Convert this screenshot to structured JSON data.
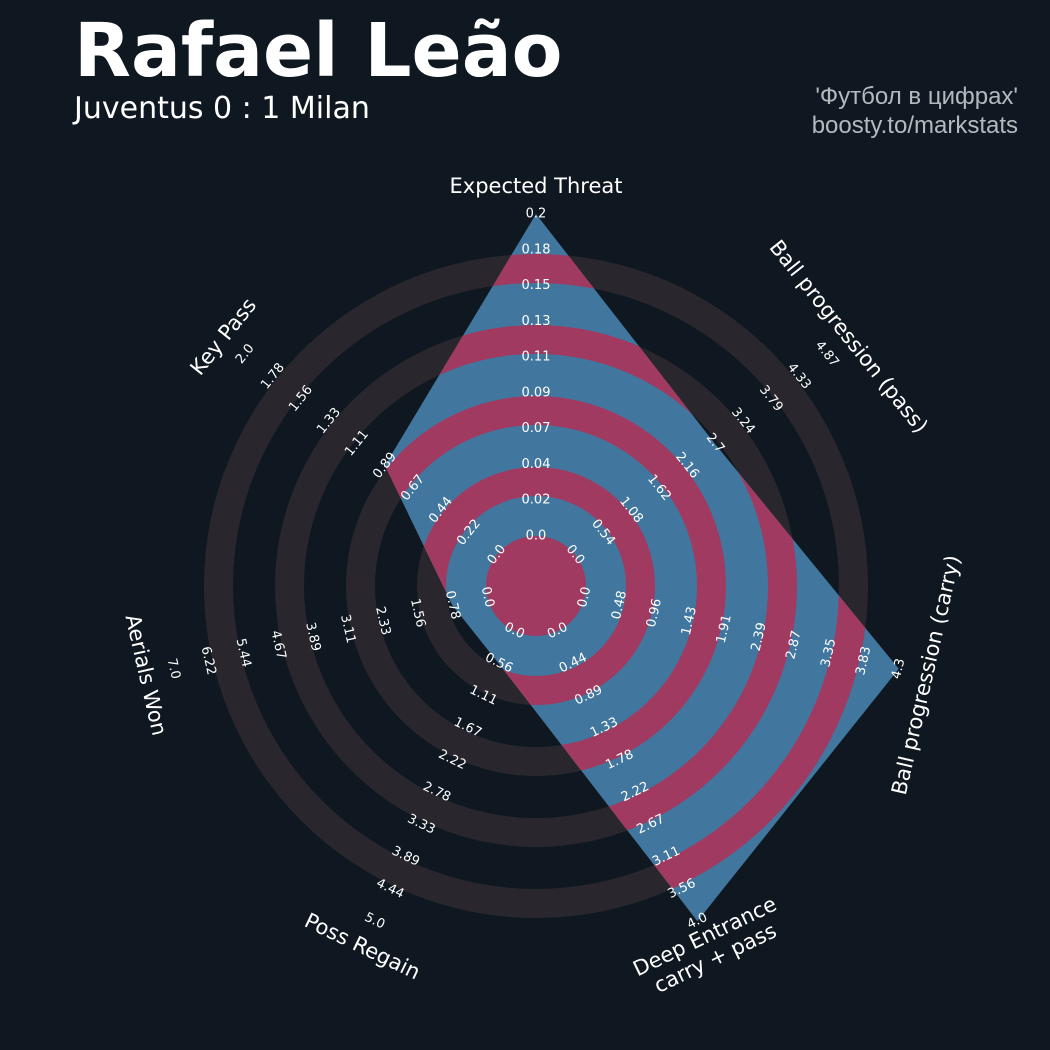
{
  "header": {
    "player_name": "Rafael Leão",
    "match": "Juventus 0 : 1 Milan",
    "credit_line1": "'Футбол в цифрах'",
    "credit_line2": "boosty.to/markstats"
  },
  "colors": {
    "background": "#0f1821",
    "ring_band": "#2a262e",
    "polygon_fill": "#41779f",
    "polygon_ring": "#a03a60",
    "text": "#ffffff",
    "credit_text": "#b4b9be"
  },
  "chart_data": {
    "type": "radar",
    "title": "Rafael Leão",
    "subtitle": "Juventus 0 : 1 Milan",
    "grid": true,
    "axes": [
      {
        "label": "Expected Threat",
        "min": 0.0,
        "max": 0.2,
        "value": 0.2,
        "ticks": [
          "0.0",
          "0.02",
          "0.04",
          "0.07",
          "0.09",
          "0.11",
          "0.13",
          "0.15",
          "0.18",
          "0.2"
        ]
      },
      {
        "label": "Ball progression (pass)",
        "min": 0.0,
        "max": 4.87,
        "value": 2.7,
        "ticks": [
          "0.0",
          "0.54",
          "1.08",
          "1.62",
          "2.16",
          "2.7",
          "3.24",
          "3.79",
          "4.33",
          "4.87"
        ]
      },
      {
        "label": "Ball progression (carry)",
        "min": 0.0,
        "max": 4.3,
        "value": 4.3,
        "ticks": [
          "0.0",
          "0.48",
          "0.96",
          "1.43",
          "1.91",
          "2.39",
          "2.87",
          "3.35",
          "3.83",
          "4.3"
        ]
      },
      {
        "label": "Deep Entrance\ncarry + pass",
        "min": 0.0,
        "max": 4.0,
        "value": 4.0,
        "ticks": [
          "0.0",
          "0.44",
          "0.89",
          "1.33",
          "1.78",
          "2.22",
          "2.67",
          "3.11",
          "3.56",
          "4.0"
        ]
      },
      {
        "label": "Poss Regain",
        "min": 0.0,
        "max": 5.0,
        "value": 0.56,
        "ticks": [
          "0.0",
          "0.56",
          "1.11",
          "1.67",
          "2.22",
          "2.78",
          "3.33",
          "3.89",
          "4.44",
          "5.0"
        ]
      },
      {
        "label": "Aerials Won",
        "min": 0.0,
        "max": 7.0,
        "value": 0.78,
        "ticks": [
          "0.0",
          "0.78",
          "1.56",
          "2.33",
          "3.11",
          "3.89",
          "4.67",
          "5.44",
          "6.22",
          "7.0"
        ]
      },
      {
        "label": "Key Pass",
        "min": 0.0,
        "max": 2.0,
        "value": 0.89,
        "ticks": [
          "0.0",
          "0.22",
          "0.44",
          "0.67",
          "0.89",
          "1.11",
          "1.33",
          "1.56",
          "1.78",
          "2.0"
        ]
      }
    ]
  }
}
